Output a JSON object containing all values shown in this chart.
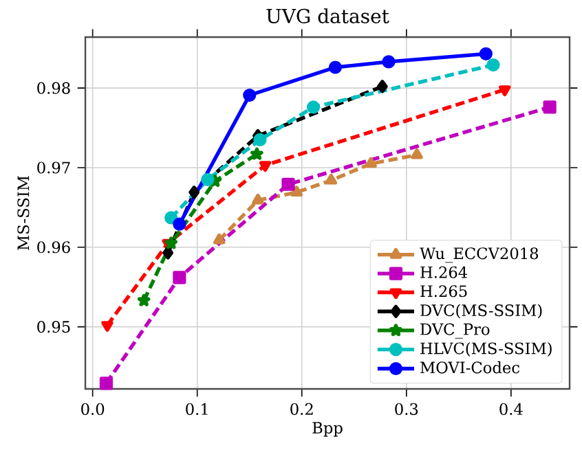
{
  "chart_data": {
    "type": "line",
    "title": "UVG dataset",
    "xlabel": "Bpp",
    "ylabel": "MS-SSIM",
    "xlim": [
      -0.007,
      0.456
    ],
    "ylim": [
      0.9422,
      0.9864
    ],
    "xticks": [
      {
        "value": 0,
        "label": "0.0"
      },
      {
        "value": 0.1,
        "label": "0.1"
      },
      {
        "value": 0.2,
        "label": "0.2"
      },
      {
        "value": 0.3,
        "label": "0.3"
      },
      {
        "value": 0.4,
        "label": "0.4"
      }
    ],
    "yticks": [
      0.95,
      0.96,
      0.97,
      0.98
    ],
    "grid": true,
    "legend": "bottom right",
    "series": [
      {
        "name": "Wu_ECCV2018",
        "color": "#cd853f",
        "marker": "triangle",
        "line_style": "dashed",
        "x": [
          0.121,
          0.158,
          0.195,
          0.228,
          0.266,
          0.31
        ],
        "values": [
          0.9609,
          0.9659,
          0.9669,
          0.9684,
          0.9705,
          0.9716
        ]
      },
      {
        "name": "H.264",
        "color": "#bf00bf",
        "marker": "square",
        "line_style": "dashed",
        "x": [
          0.013,
          0.083,
          0.187,
          0.437
        ],
        "values": [
          0.9429,
          0.9562,
          0.9679,
          0.9776
        ]
      },
      {
        "name": "H.265",
        "color": "#ff0000",
        "marker": "triangle down",
        "line_style": "dashed",
        "x": [
          0.014,
          0.072,
          0.165,
          0.394
        ],
        "values": [
          0.9502,
          0.9605,
          0.9703,
          0.9798
        ]
      },
      {
        "name": "DVC(MS-SSIM)",
        "color": "#000000",
        "marker": "diamond",
        "line_style": "dashed",
        "x": [
          0.072,
          0.097,
          0.158,
          0.277
        ],
        "values": [
          0.9593,
          0.9669,
          0.974,
          0.9802
        ]
      },
      {
        "name": "DVC_Pro",
        "color": "#008000",
        "marker": "star",
        "line_style": "dashed",
        "x": [
          0.049,
          0.075,
          0.117,
          0.157
        ],
        "values": [
          0.9533,
          0.9605,
          0.9683,
          0.9717
        ]
      },
      {
        "name": "HLVC(MS-SSIM)",
        "color": "#00bfbf",
        "marker": "circle",
        "line_style": "dashed",
        "x": [
          0.075,
          0.11,
          0.16,
          0.211,
          0.383
        ],
        "values": [
          0.9637,
          0.9685,
          0.9735,
          0.9776,
          0.9829
        ]
      },
      {
        "name": "MOVI-Codec",
        "color": "#0000ff",
        "marker": "circle",
        "line_style": "solid",
        "x": [
          0.083,
          0.15,
          0.232,
          0.283,
          0.376
        ],
        "values": [
          0.9629,
          0.9791,
          0.9826,
          0.9833,
          0.9843
        ]
      }
    ]
  }
}
